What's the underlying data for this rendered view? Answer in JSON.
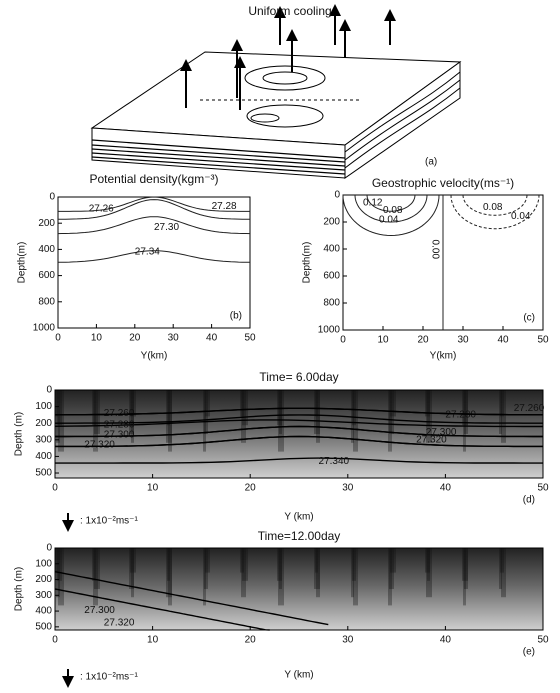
{
  "figure_a": {
    "title": "Uniform cooling",
    "panel": "(a)"
  },
  "chart_data": [
    {
      "type": "contour",
      "title": "Potential density(kgm⁻³)",
      "x_label": "Y(km)",
      "y_label": "Depth(m)",
      "panel": "(b)",
      "xlim": [
        0,
        50
      ],
      "xticks": [
        0,
        10,
        20,
        30,
        40,
        50
      ],
      "ylim": [
        1000,
        0
      ],
      "yticks": [
        0,
        200,
        400,
        600,
        800,
        1000
      ],
      "levels": [
        27.26,
        27.28,
        {
          "value": 27.3,
          "label": "27.30"
        },
        27.34
      ]
    },
    {
      "type": "contour",
      "title": "Geostrophic velocity(ms⁻¹)",
      "x_label": "Y(km)",
      "y_label": "Depth(m)",
      "panel": "(c)",
      "xlim": [
        0,
        50
      ],
      "xticks": [
        0,
        10,
        20,
        30,
        40,
        50
      ],
      "ylim": [
        1000,
        0
      ],
      "yticks": [
        0,
        200,
        400,
        600,
        800,
        1000
      ],
      "levels": [
        0.12,
        0.08,
        0.04,
        {
          "value": 0,
          "label": "0.00"
        },
        0.08,
        0.04
      ]
    },
    {
      "type": "section",
      "title": "Time= 6.00day",
      "x_label": "Y (km)",
      "y_label": "Depth (m)",
      "panel": "(d)",
      "vector_scale": ": 1x10⁻²ms⁻¹",
      "xlim": [
        0,
        50
      ],
      "xticks": [
        0,
        10,
        20,
        30,
        40,
        50
      ],
      "ylim": [
        530,
        0
      ],
      "yticks": [
        0,
        100,
        200,
        300,
        400,
        500
      ],
      "levels": [
        {
          "value": 27.26,
          "label": "27.260"
        },
        {
          "value": 27.28,
          "label": "27.280"
        },
        {
          "value": 27.3,
          "label": "27.300"
        },
        {
          "value": 27.32,
          "label": "27.320"
        },
        {
          "value": 27.34,
          "label": "27.340"
        },
        {
          "value": 27.3,
          "label": "27.300"
        },
        {
          "value": 27.32,
          "label": "27.320"
        },
        {
          "value": 27.28,
          "label": "27.280"
        },
        {
          "value": 27.26,
          "label": "27.260"
        }
      ]
    },
    {
      "type": "section",
      "title": "Time=12.00day",
      "x_label": "Y (km)",
      "y_label": "Depth (m)",
      "panel": "(e)",
      "vector_scale": ": 1x10⁻²ms⁻¹",
      "xlim": [
        0,
        50
      ],
      "xticks": [
        0,
        10,
        20,
        30,
        40,
        50
      ],
      "ylim": [
        520,
        0
      ],
      "yticks": [
        0,
        100,
        200,
        300,
        400,
        500
      ],
      "levels": [
        {
          "value": 27.3,
          "label": "27.300"
        },
        {
          "value": 27.32,
          "label": "27.320"
        }
      ]
    }
  ]
}
